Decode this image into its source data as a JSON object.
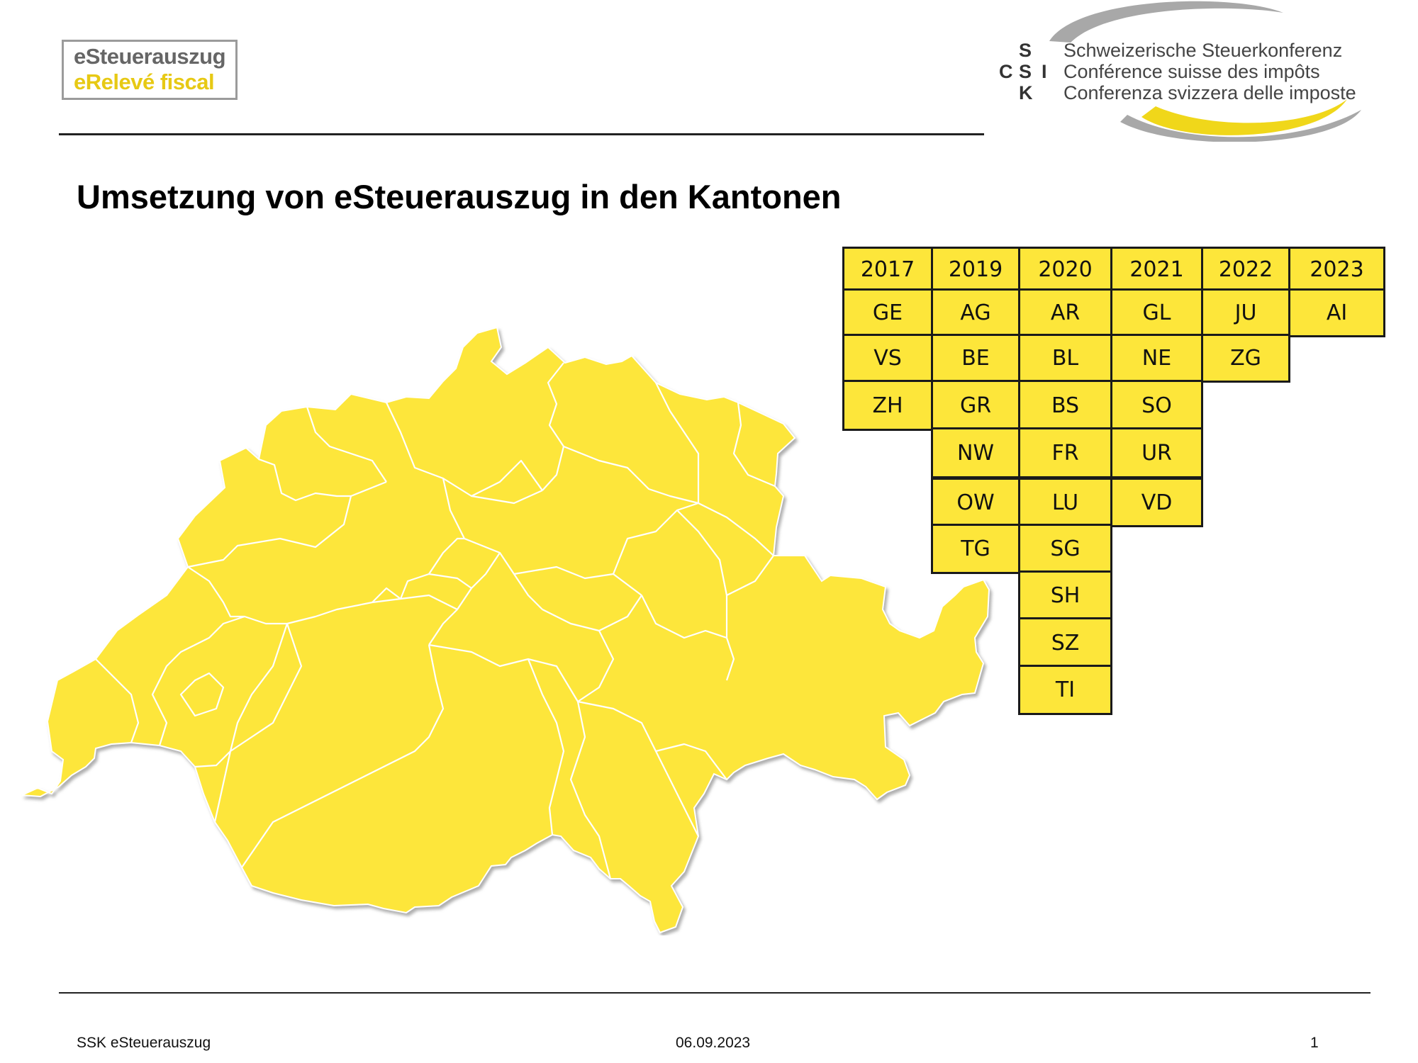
{
  "logo": {
    "line1": "eSteuerauszug",
    "line2": "eRelevé fiscal",
    "gray": "#666666",
    "yellow": "#e7c914"
  },
  "ssk": {
    "letters": [
      "S",
      "C",
      "S",
      "I",
      "K"
    ],
    "lines": [
      "Schweizerische Steuerkonferenz",
      "Conférence suisse des impôts",
      "Conferenza svizzera delle imposte"
    ]
  },
  "title": "Umsetzung von eSteuerauszug in den Kantonen",
  "map": {
    "fill": "#fde63a",
    "icon": "switzerland-map-icon"
  },
  "table": {
    "columns": [
      {
        "year": "2017",
        "cantons": [
          "GE",
          "VS",
          "ZH"
        ]
      },
      {
        "year": "2019",
        "cantons": [
          "AG",
          "BE",
          "GR",
          "NW",
          "OW",
          "TG"
        ]
      },
      {
        "year": "2020",
        "cantons": [
          "AR",
          "BL",
          "BS",
          "FR",
          "LU",
          "SG",
          "SH",
          "SZ",
          "TI"
        ]
      },
      {
        "year": "2021",
        "cantons": [
          "GL",
          "NE",
          "SO",
          "UR",
          "VD"
        ]
      },
      {
        "year": "2022",
        "cantons": [
          "JU",
          "ZG"
        ]
      },
      {
        "year": "2023",
        "cantons": [
          "AI"
        ]
      }
    ]
  },
  "footer": {
    "left": "SSK eSteuerauszug",
    "date": "06.09.2023",
    "page": "1"
  }
}
